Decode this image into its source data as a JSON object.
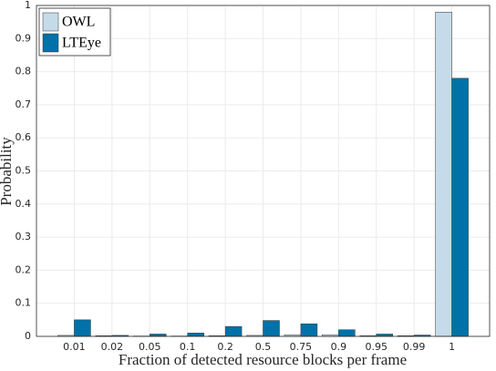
{
  "chart_data": {
    "type": "bar",
    "x_label": "Fraction of detected resource blocks per frame",
    "y_label": "Probability",
    "categories": [
      "0.01",
      "0.02",
      "0.05",
      "0.1",
      "0.2",
      "0.5",
      "0.75",
      "0.9",
      "0.95",
      "0.99",
      "1"
    ],
    "series": [
      {
        "name": "OWL",
        "color": "#c6dbe9",
        "values": [
          0.003,
          0.002,
          0.001,
          0.001,
          0.002,
          0.003,
          0.005,
          0.005,
          0.002,
          0.002,
          0.98
        ]
      },
      {
        "name": "LTEye",
        "color": "#0072a8",
        "values": [
          0.05,
          0.003,
          0.007,
          0.01,
          0.03,
          0.048,
          0.038,
          0.02,
          0.007,
          0.004,
          0.78
        ]
      }
    ],
    "ylim": [
      0,
      1
    ],
    "yticks": [
      0,
      0.1,
      0.2,
      0.3,
      0.4,
      0.5,
      0.6,
      0.7,
      0.8,
      0.9,
      1
    ],
    "grid": true,
    "legend": "top-left"
  }
}
